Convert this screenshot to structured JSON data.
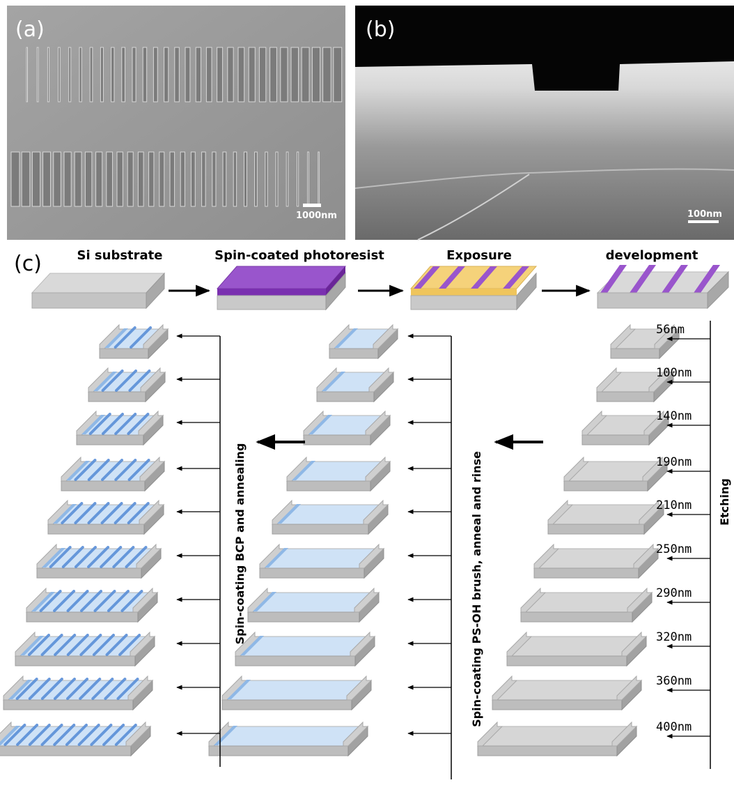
{
  "panels": {
    "a": {
      "letter": "(a)",
      "scale_bar": "1000nm"
    },
    "b": {
      "letter": "(b)",
      "scale_bar": "100nm"
    },
    "c": {
      "letter": "(c)"
    }
  },
  "process_steps": [
    "Si substrate",
    "Spin-coated photoresist",
    "Exposure",
    "development"
  ],
  "etch_depths": [
    "56nm",
    "100nm",
    "140nm",
    "190nm",
    "210nm",
    "250nm",
    "290nm",
    "320nm",
    "360nm",
    "400nm"
  ],
  "labels": {
    "etching": "Etching",
    "brush": "Spin-coating PS-OH brush, anneal and rinse",
    "bcp": "Spin-coating BCP and annealing"
  },
  "colors": {
    "substrate_top": "#d6d6d6",
    "substrate_side": "#a8a8a8",
    "photoresist": "#9955cc",
    "exposed": "#f5d27a",
    "brush": "#cfe2f6",
    "bcp_cylinder": "#5a8fd8"
  }
}
